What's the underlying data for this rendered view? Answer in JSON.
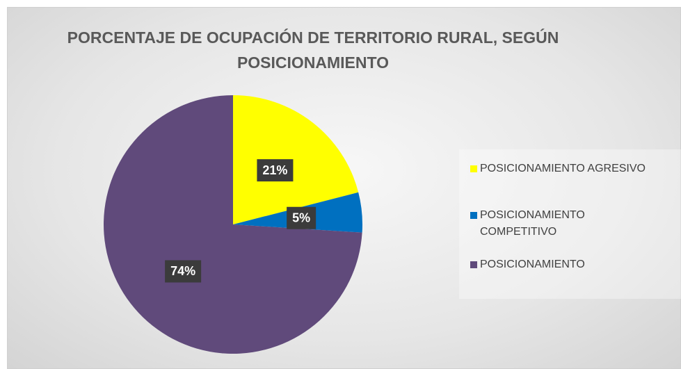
{
  "chart_data": {
    "type": "pie",
    "title": "PORCENTAJE DE OCUPACIÓN DE TERRITORIO RURAL, SEGÚN POSICIONAMIENTO",
    "categories": [
      "POSICIONAMIENTO AGRESIVO",
      "POSICIONAMIENTO COMPETITIVO",
      "POSICIONAMIENTO"
    ],
    "values": [
      21,
      5,
      74
    ],
    "value_labels": [
      "21%",
      "5%",
      "74%"
    ],
    "colors": [
      "#ffff00",
      "#0070c0",
      "#604a7b"
    ],
    "legend": "right"
  }
}
